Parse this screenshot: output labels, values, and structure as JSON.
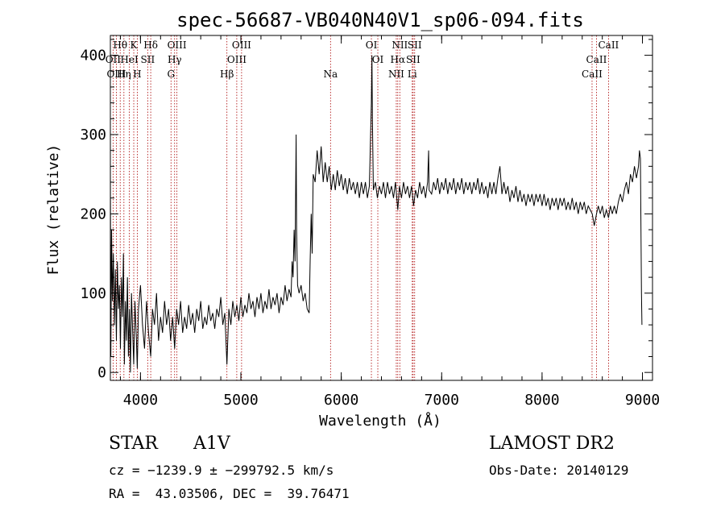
{
  "chart_data": {
    "type": "line",
    "title": "spec-56687-VB040N40V1_sp06-094.fits",
    "xlabel": "Wavelength (Å)",
    "ylabel": "Flux (relative)",
    "xlim": [
      3700,
      9100
    ],
    "ylim": [
      -10,
      425
    ],
    "x_ticks": [
      4000,
      5000,
      6000,
      7000,
      8000,
      9000
    ],
    "y_ticks": [
      0,
      100,
      200,
      300,
      400
    ],
    "grid": false,
    "series_color": "#000000",
    "line_marker_color": "#aa0000",
    "spectrum_points": [
      [
        3700,
        260
      ],
      [
        3705,
        20
      ],
      [
        3712,
        180
      ],
      [
        3720,
        90
      ],
      [
        3730,
        150
      ],
      [
        3740,
        60
      ],
      [
        3750,
        130
      ],
      [
        3760,
        40
      ],
      [
        3770,
        140
      ],
      [
        3780,
        80
      ],
      [
        3790,
        110
      ],
      [
        3800,
        30
      ],
      [
        3810,
        120
      ],
      [
        3820,
        70
      ],
      [
        3830,
        150
      ],
      [
        3840,
        10
      ],
      [
        3850,
        90
      ],
      [
        3860,
        40
      ],
      [
        3870,
        120
      ],
      [
        3880,
        20
      ],
      [
        3890,
        80
      ],
      [
        3900,
        0
      ],
      [
        3910,
        100
      ],
      [
        3920,
        60
      ],
      [
        3933,
        10
      ],
      [
        3945,
        90
      ],
      [
        3960,
        40
      ],
      [
        3968,
        5
      ],
      [
        3980,
        80
      ],
      [
        4000,
        110
      ],
      [
        4020,
        60
      ],
      [
        4040,
        30
      ],
      [
        4060,
        90
      ],
      [
        4080,
        50
      ],
      [
        4102,
        20
      ],
      [
        4120,
        80
      ],
      [
        4140,
        60
      ],
      [
        4160,
        100
      ],
      [
        4180,
        40
      ],
      [
        4200,
        70
      ],
      [
        4220,
        50
      ],
      [
        4240,
        90
      ],
      [
        4260,
        60
      ],
      [
        4280,
        80
      ],
      [
        4300,
        40
      ],
      [
        4320,
        70
      ],
      [
        4340,
        30
      ],
      [
        4360,
        80
      ],
      [
        4380,
        60
      ],
      [
        4400,
        90
      ],
      [
        4420,
        50
      ],
      [
        4440,
        70
      ],
      [
        4460,
        55
      ],
      [
        4480,
        85
      ],
      [
        4500,
        60
      ],
      [
        4520,
        75
      ],
      [
        4540,
        50
      ],
      [
        4560,
        80
      ],
      [
        4580,
        65
      ],
      [
        4600,
        90
      ],
      [
        4620,
        55
      ],
      [
        4640,
        70
      ],
      [
        4660,
        60
      ],
      [
        4680,
        85
      ],
      [
        4700,
        65
      ],
      [
        4720,
        75
      ],
      [
        4740,
        55
      ],
      [
        4760,
        80
      ],
      [
        4780,
        70
      ],
      [
        4800,
        95
      ],
      [
        4820,
        60
      ],
      [
        4840,
        75
      ],
      [
        4861,
        10
      ],
      [
        4880,
        80
      ],
      [
        4900,
        60
      ],
      [
        4920,
        90
      ],
      [
        4940,
        70
      ],
      [
        4960,
        85
      ],
      [
        4980,
        65
      ],
      [
        5000,
        95
      ],
      [
        5020,
        70
      ],
      [
        5040,
        85
      ],
      [
        5060,
        75
      ],
      [
        5080,
        100
      ],
      [
        5100,
        80
      ],
      [
        5120,
        90
      ],
      [
        5140,
        70
      ],
      [
        5160,
        95
      ],
      [
        5180,
        80
      ],
      [
        5200,
        100
      ],
      [
        5220,
        75
      ],
      [
        5240,
        90
      ],
      [
        5260,
        80
      ],
      [
        5280,
        105
      ],
      [
        5300,
        80
      ],
      [
        5320,
        95
      ],
      [
        5340,
        85
      ],
      [
        5360,
        100
      ],
      [
        5380,
        75
      ],
      [
        5400,
        95
      ],
      [
        5420,
        85
      ],
      [
        5440,
        110
      ],
      [
        5460,
        90
      ],
      [
        5480,
        105
      ],
      [
        5500,
        95
      ],
      [
        5510,
        140
      ],
      [
        5520,
        120
      ],
      [
        5530,
        180
      ],
      [
        5540,
        140
      ],
      [
        5550,
        300
      ],
      [
        5555,
        180
      ],
      [
        5565,
        110
      ],
      [
        5580,
        100
      ],
      [
        5600,
        110
      ],
      [
        5620,
        90
      ],
      [
        5640,
        100
      ],
      [
        5660,
        80
      ],
      [
        5680,
        75
      ],
      [
        5690,
        140
      ],
      [
        5700,
        200
      ],
      [
        5710,
        150
      ],
      [
        5720,
        250
      ],
      [
        5740,
        240
      ],
      [
        5760,
        280
      ],
      [
        5780,
        250
      ],
      [
        5800,
        285
      ],
      [
        5820,
        240
      ],
      [
        5840,
        265
      ],
      [
        5860,
        240
      ],
      [
        5880,
        260
      ],
      [
        5900,
        230
      ],
      [
        5920,
        250
      ],
      [
        5940,
        230
      ],
      [
        5960,
        255
      ],
      [
        5980,
        235
      ],
      [
        6000,
        250
      ],
      [
        6020,
        230
      ],
      [
        6040,
        245
      ],
      [
        6060,
        225
      ],
      [
        6080,
        245
      ],
      [
        6100,
        230
      ],
      [
        6120,
        240
      ],
      [
        6140,
        225
      ],
      [
        6160,
        240
      ],
      [
        6180,
        220
      ],
      [
        6200,
        240
      ],
      [
        6220,
        225
      ],
      [
        6240,
        240
      ],
      [
        6260,
        220
      ],
      [
        6280,
        235
      ],
      [
        6300,
        340
      ],
      [
        6305,
        400
      ],
      [
        6310,
        320
      ],
      [
        6320,
        230
      ],
      [
        6340,
        240
      ],
      [
        6360,
        220
      ],
      [
        6380,
        235
      ],
      [
        6400,
        225
      ],
      [
        6420,
        240
      ],
      [
        6440,
        220
      ],
      [
        6460,
        240
      ],
      [
        6480,
        225
      ],
      [
        6500,
        235
      ],
      [
        6520,
        220
      ],
      [
        6540,
        240
      ],
      [
        6563,
        205
      ],
      [
        6580,
        235
      ],
      [
        6600,
        220
      ],
      [
        6620,
        240
      ],
      [
        6640,
        225
      ],
      [
        6660,
        235
      ],
      [
        6680,
        220
      ],
      [
        6700,
        235
      ],
      [
        6720,
        210
      ],
      [
        6740,
        230
      ],
      [
        6760,
        220
      ],
      [
        6780,
        240
      ],
      [
        6800,
        225
      ],
      [
        6820,
        235
      ],
      [
        6840,
        220
      ],
      [
        6860,
        240
      ],
      [
        6870,
        280
      ],
      [
        6875,
        230
      ],
      [
        6900,
        225
      ],
      [
        6920,
        240
      ],
      [
        6940,
        230
      ],
      [
        6960,
        245
      ],
      [
        6980,
        225
      ],
      [
        7000,
        240
      ],
      [
        7020,
        230
      ],
      [
        7040,
        245
      ],
      [
        7060,
        225
      ],
      [
        7080,
        240
      ],
      [
        7100,
        230
      ],
      [
        7120,
        245
      ],
      [
        7140,
        225
      ],
      [
        7160,
        240
      ],
      [
        7180,
        230
      ],
      [
        7200,
        245
      ],
      [
        7220,
        225
      ],
      [
        7240,
        240
      ],
      [
        7260,
        230
      ],
      [
        7280,
        240
      ],
      [
        7300,
        225
      ],
      [
        7320,
        240
      ],
      [
        7340,
        230
      ],
      [
        7360,
        245
      ],
      [
        7380,
        225
      ],
      [
        7400,
        240
      ],
      [
        7420,
        225
      ],
      [
        7440,
        235
      ],
      [
        7460,
        220
      ],
      [
        7480,
        240
      ],
      [
        7500,
        225
      ],
      [
        7520,
        240
      ],
      [
        7540,
        225
      ],
      [
        7560,
        245
      ],
      [
        7580,
        260
      ],
      [
        7600,
        225
      ],
      [
        7620,
        240
      ],
      [
        7640,
        225
      ],
      [
        7660,
        235
      ],
      [
        7680,
        215
      ],
      [
        7700,
        230
      ],
      [
        7720,
        220
      ],
      [
        7740,
        235
      ],
      [
        7760,
        215
      ],
      [
        7780,
        230
      ],
      [
        7800,
        215
      ],
      [
        7820,
        225
      ],
      [
        7840,
        210
      ],
      [
        7860,
        225
      ],
      [
        7880,
        215
      ],
      [
        7900,
        225
      ],
      [
        7920,
        210
      ],
      [
        7940,
        225
      ],
      [
        7960,
        215
      ],
      [
        7980,
        225
      ],
      [
        8000,
        210
      ],
      [
        8020,
        225
      ],
      [
        8040,
        210
      ],
      [
        8060,
        220
      ],
      [
        8080,
        205
      ],
      [
        8100,
        220
      ],
      [
        8120,
        210
      ],
      [
        8140,
        220
      ],
      [
        8160,
        205
      ],
      [
        8180,
        220
      ],
      [
        8200,
        210
      ],
      [
        8220,
        220
      ],
      [
        8240,
        205
      ],
      [
        8260,
        215
      ],
      [
        8280,
        205
      ],
      [
        8300,
        220
      ],
      [
        8320,
        205
      ],
      [
        8340,
        215
      ],
      [
        8360,
        200
      ],
      [
        8380,
        215
      ],
      [
        8400,
        205
      ],
      [
        8420,
        215
      ],
      [
        8440,
        200
      ],
      [
        8460,
        210
      ],
      [
        8480,
        205
      ],
      [
        8500,
        200
      ],
      [
        8520,
        185
      ],
      [
        8542,
        200
      ],
      [
        8560,
        210
      ],
      [
        8580,
        200
      ],
      [
        8600,
        210
      ],
      [
        8620,
        195
      ],
      [
        8640,
        205
      ],
      [
        8662,
        195
      ],
      [
        8680,
        210
      ],
      [
        8700,
        200
      ],
      [
        8720,
        210
      ],
      [
        8740,
        200
      ],
      [
        8760,
        215
      ],
      [
        8780,
        225
      ],
      [
        8800,
        215
      ],
      [
        8820,
        230
      ],
      [
        8840,
        240
      ],
      [
        8860,
        225
      ],
      [
        8880,
        250
      ],
      [
        8900,
        240
      ],
      [
        8920,
        260
      ],
      [
        8940,
        245
      ],
      [
        8960,
        260
      ],
      [
        8970,
        280
      ],
      [
        8980,
        270
      ],
      [
        8990,
        100
      ],
      [
        8995,
        60
      ]
    ],
    "line_markers": [
      {
        "wl": 3727,
        "label": "OII",
        "row": 1
      },
      {
        "wl": 3760,
        "label": "OIII",
        "row": 2
      },
      {
        "wl": 3798,
        "label": "Hθ",
        "row": 0
      },
      {
        "wl": 3835,
        "label": "Hη",
        "row": 2
      },
      {
        "wl": 3889,
        "label": "HeI",
        "row": 1
      },
      {
        "wl": 3933,
        "label": "K",
        "row": 0
      },
      {
        "wl": 3968,
        "label": "H",
        "row": 2
      },
      {
        "wl": 4072,
        "label": "SII",
        "row": 1
      },
      {
        "wl": 4102,
        "label": "Hδ",
        "row": 0
      },
      {
        "wl": 4304,
        "label": "G",
        "row": 2
      },
      {
        "wl": 4340,
        "label": "Hγ",
        "row": 1
      },
      {
        "wl": 4363,
        "label": "OIII",
        "row": 0
      },
      {
        "wl": 4861,
        "label": "Hβ",
        "row": 2
      },
      {
        "wl": 4959,
        "label": "OIII",
        "row": 1
      },
      {
        "wl": 5007,
        "label": "OIII",
        "row": 0
      },
      {
        "wl": 5893,
        "label": "Na",
        "row": 2
      },
      {
        "wl": 6300,
        "label": "OI",
        "row": 0
      },
      {
        "wl": 6364,
        "label": "OI",
        "row": 1
      },
      {
        "wl": 6548,
        "label": "NII",
        "row": 2
      },
      {
        "wl": 6563,
        "label": "Hα",
        "row": 1
      },
      {
        "wl": 6583,
        "label": "NII",
        "row": 0
      },
      {
        "wl": 6707,
        "label": "Li",
        "row": 2
      },
      {
        "wl": 6716,
        "label": "SII",
        "row": 1
      },
      {
        "wl": 6731,
        "label": "SII",
        "row": 0
      },
      {
        "wl": 8498,
        "label": "CaII",
        "row": 2
      },
      {
        "wl": 8542,
        "label": "CaII",
        "row": 1
      },
      {
        "wl": 8662,
        "label": "CaII",
        "row": 0
      }
    ]
  },
  "info": {
    "class_label": "STAR",
    "subclass": "A1V",
    "survey": "LAMOST DR2",
    "cz_line": "cz = −1239.9 ± −299792.5 km/s",
    "obs_date": "Obs-Date: 20140129",
    "coords": "RA =  43.03506, DEC =  39.76471"
  }
}
